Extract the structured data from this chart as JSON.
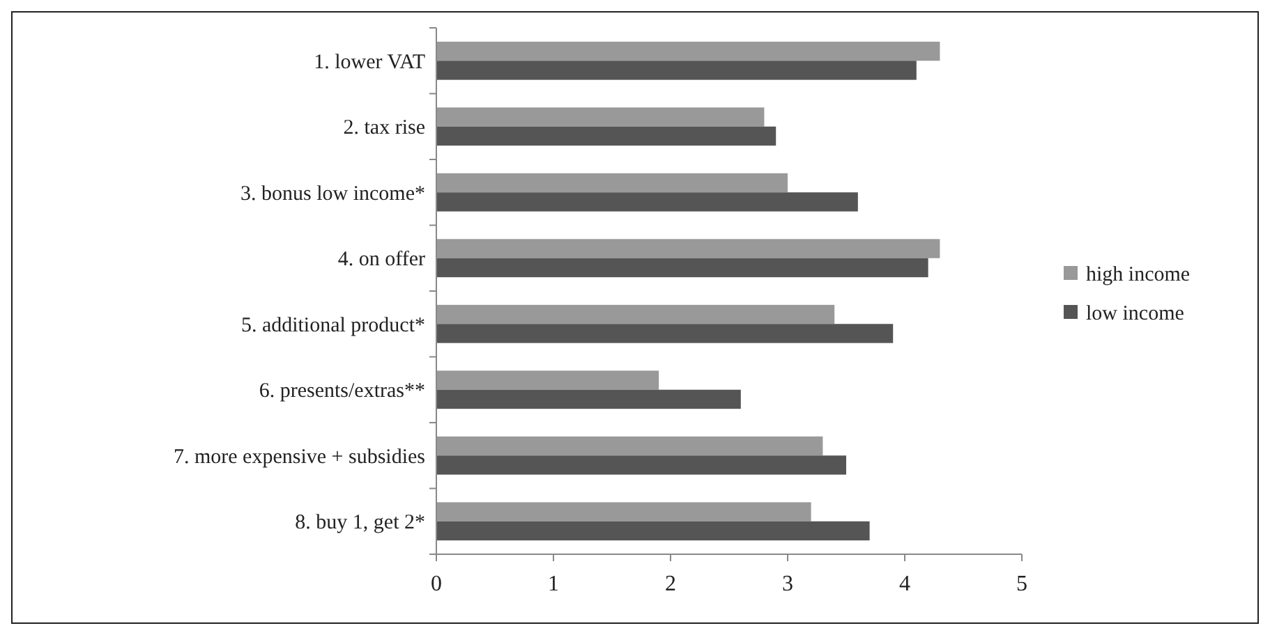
{
  "chart_data": {
    "type": "bar",
    "orientation": "horizontal",
    "categories": [
      "1. lower VAT",
      "2. tax rise",
      "3. bonus low income*",
      "4. on offer",
      "5. additional product*",
      "6. presents/extras**",
      "7. more expensive + subsidies",
      "8. buy 1, get 2*"
    ],
    "series": [
      {
        "name": "high income",
        "color": "#999999",
        "values": [
          4.3,
          2.8,
          3.0,
          4.3,
          3.4,
          1.9,
          3.3,
          3.2
        ]
      },
      {
        "name": "low income",
        "color": "#555555",
        "values": [
          4.1,
          2.9,
          3.6,
          4.2,
          3.9,
          2.6,
          3.5,
          3.7
        ]
      }
    ],
    "xlim": [
      0,
      5
    ],
    "xticks": [
      0,
      1,
      2,
      3,
      4,
      5
    ],
    "legend": "right",
    "grid": false
  }
}
